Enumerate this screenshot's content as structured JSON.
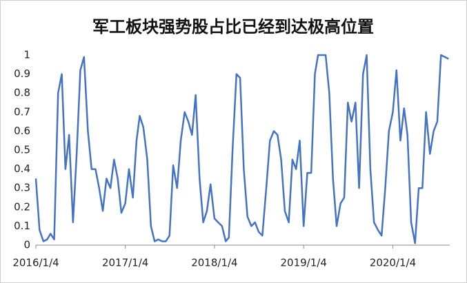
{
  "chart_data": {
    "type": "line",
    "title": "军工板块强势股占比已经到达极高位置",
    "x": [
      "2016/1/4",
      "2016/1/19",
      "2016/2/4",
      "2016/2/19",
      "2016/3/4",
      "2016/3/19",
      "2016/4/4",
      "2016/4/19",
      "2016/5/4",
      "2016/5/19",
      "2016/6/4",
      "2016/6/19",
      "2016/7/4",
      "2016/7/19",
      "2016/8/4",
      "2016/8/19",
      "2016/9/4",
      "2016/9/19",
      "2016/10/4",
      "2016/10/19",
      "2016/11/4",
      "2016/11/19",
      "2016/12/4",
      "2016/12/19",
      "2017/1/4",
      "2017/1/19",
      "2017/2/4",
      "2017/2/19",
      "2017/3/4",
      "2017/3/19",
      "2017/4/4",
      "2017/4/19",
      "2017/5/4",
      "2017/5/19",
      "2017/6/4",
      "2017/6/19",
      "2017/7/4",
      "2017/7/19",
      "2017/8/4",
      "2017/8/19",
      "2017/9/4",
      "2017/9/19",
      "2017/10/4",
      "2017/10/19",
      "2017/11/4",
      "2017/11/19",
      "2017/12/4",
      "2017/12/19",
      "2018/1/4",
      "2018/1/19",
      "2018/2/4",
      "2018/2/19",
      "2018/3/4",
      "2018/3/19",
      "2018/4/4",
      "2018/4/19",
      "2018/5/4",
      "2018/5/19",
      "2018/6/4",
      "2018/6/19",
      "2018/7/4",
      "2018/7/19",
      "2018/8/4",
      "2018/8/19",
      "2018/9/4",
      "2018/9/19",
      "2018/10/4",
      "2018/10/19",
      "2018/11/4",
      "2018/11/19",
      "2018/12/4",
      "2018/12/19",
      "2019/1/4",
      "2019/1/19",
      "2019/2/4",
      "2019/2/19",
      "2019/3/4",
      "2019/3/19",
      "2019/4/4",
      "2019/4/19",
      "2019/5/4",
      "2019/5/19",
      "2019/6/4",
      "2019/6/19",
      "2019/7/4",
      "2019/7/19",
      "2019/8/4",
      "2019/8/19",
      "2019/9/4",
      "2019/9/19",
      "2019/10/4",
      "2019/10/19",
      "2019/11/4",
      "2019/11/19",
      "2019/12/4",
      "2019/12/19",
      "2020/1/4",
      "2020/1/19",
      "2020/2/4",
      "2020/2/19",
      "2020/3/4",
      "2020/3/19",
      "2020/4/4",
      "2020/4/19",
      "2020/5/4",
      "2020/5/19",
      "2020/6/4",
      "2020/6/19",
      "2020/7/4",
      "2020/7/19",
      "2020/8/4",
      "2020/8/19"
    ],
    "series": [
      {
        "name": "强势股占比",
        "color": "#4472c4",
        "values": [
          0.35,
          0.08,
          0.02,
          0.03,
          0.06,
          0.03,
          0.8,
          0.9,
          0.4,
          0.58,
          0.12,
          0.48,
          0.92,
          0.99,
          0.6,
          0.4,
          0.4,
          0.3,
          0.18,
          0.35,
          0.3,
          0.45,
          0.35,
          0.17,
          0.22,
          0.4,
          0.25,
          0.55,
          0.68,
          0.62,
          0.45,
          0.1,
          0.02,
          0.03,
          0.02,
          0.02,
          0.05,
          0.42,
          0.3,
          0.55,
          0.7,
          0.65,
          0.58,
          0.79,
          0.35,
          0.12,
          0.18,
          0.32,
          0.14,
          0.12,
          0.1,
          0.02,
          0.04,
          0.5,
          0.9,
          0.88,
          0.4,
          0.15,
          0.1,
          0.12,
          0.07,
          0.05,
          0.3,
          0.55,
          0.6,
          0.58,
          0.45,
          0.18,
          0.12,
          0.45,
          0.4,
          0.55,
          0.1,
          0.38,
          0.38,
          0.9,
          1,
          1,
          1,
          0.8,
          0.35,
          0.1,
          0.22,
          0.25,
          0.75,
          0.65,
          0.75,
          0.3,
          0.9,
          1,
          0.4,
          0.12,
          0.08,
          0.05,
          0.3,
          0.6,
          0.7,
          0.92,
          0.55,
          0.72,
          0.58,
          0.12,
          0.01,
          0.3,
          0.3,
          0.7,
          0.48,
          0.6,
          0.65,
          1,
          0.99,
          0.98
        ]
      }
    ],
    "xlim": [
      "2016/1/4",
      "2020/8/24"
    ],
    "xticks": [
      "2016/1/4",
      "2017/1/4",
      "2018/1/4",
      "2019/1/4",
      "2020/1/4"
    ],
    "ylim": [
      0,
      1
    ],
    "yticks": [
      0,
      0.1,
      0.2,
      0.3,
      0.4,
      0.5,
      0.6,
      0.7,
      0.8,
      0.9,
      1
    ],
    "grid": false
  }
}
